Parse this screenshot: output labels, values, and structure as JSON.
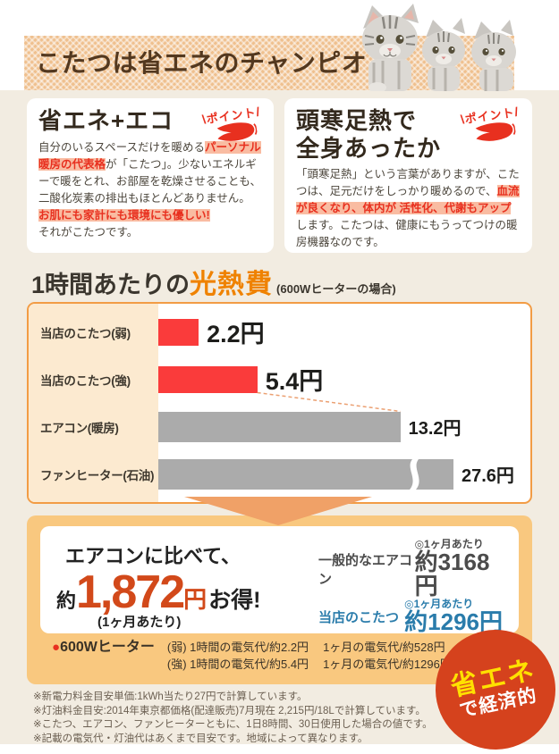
{
  "header": {
    "title": "こたつは省エネのチャンピオン!"
  },
  "point_badge": "ポイント",
  "cards": {
    "left": {
      "title": "省エネ+エコ",
      "seg1": "自分のいるスペースだけを暖める",
      "hl1": "パーソナル暖房の代表格",
      "seg2": "が「こたつ」。少ないエネルギーで暖をとれ、お部屋を乾燥させることも、二酸化炭素の排出もほとんどありません。",
      "hl2": "お肌にも家計にも環境にも優しい!",
      "seg3": "それがこたつです。"
    },
    "right": {
      "title_line1": "頭寒足熱で",
      "title_line2": "全身あったか",
      "seg1": "「頭寒足熱」という言葉がありますが、こたつは、足元だけをしっかり暖めるので、",
      "hl1": "血流が良くなり、体内が 活性化、代謝もアップ",
      "seg2": "します。こたつは、健康にもうってつけの暖房機器なのです。"
    }
  },
  "chart_section": {
    "title_main": "1時間あたりの",
    "title_accent": "光熱費",
    "title_note": "(600Wヒーターの場合)"
  },
  "chart_data": {
    "type": "bar",
    "orientation": "horizontal",
    "title": "1時間あたりの光熱費(600Wヒーターの場合)",
    "unit": "円",
    "categories": [
      "当店のこたつ(弱)",
      "当店のこたつ(強)",
      "エアコン(暖房)",
      "ファンヒーター(石油)"
    ],
    "values": [
      2.2,
      5.4,
      13.2,
      27.6
    ],
    "value_labels": [
      "2.2円",
      "5.4円",
      "13.2円",
      "27.6円"
    ],
    "bar_colors": [
      "#FA3B3B",
      "#FA3B3B",
      "#ABABAB",
      "#ABABAB"
    ],
    "highlight_color": "#FA3B3B",
    "other_color": "#ABABAB",
    "xlim": [
      0,
      28
    ],
    "grid": false,
    "broken_bar_index": 3,
    "legend": false
  },
  "savings": {
    "compare_prefix": "エアコンに比べて、",
    "approx": "約",
    "amount": "1,872",
    "yen": "円",
    "otoku": "お得!",
    "per_month": "(1ヶ月あたり)",
    "rows": [
      {
        "label": "一般的なエアコン",
        "note": "◎1ヶ月あたり",
        "value": "約3168円",
        "color": "#4c4c4c"
      },
      {
        "label": "当店のこたつ",
        "note": "◎1ヶ月あたり",
        "value": "約1296円",
        "color": "#2a7cab"
      }
    ],
    "heater": {
      "bullet": "●",
      "label": "600Wヒーター",
      "lines": [
        {
          "a": "(弱) 1時間の電気代/約2.2円",
          "b": "1ヶ月の電気代/約528円"
        },
        {
          "a": "(強) 1時間の電気代/約5.4円",
          "b": "1ヶ月の電気代/約1296円"
        }
      ]
    }
  },
  "badge": {
    "line1": "省エネ",
    "line2": "で経済的"
  },
  "footnotes": [
    "※新電力料金目安単価:1kWh当たり27円で計算しています。",
    "※灯油料金目安:2014年東京都価格(配達販売)7月現在 2,215円/18Lで計算しています。",
    "※こたつ、エアコン、ファンヒーターともに、1日8時間、30日使用した場合の値です。",
    "※記載の電気代・灯油代はあくまで目安です。地域によって異なります。"
  ],
  "colors": {
    "accent_orange": "#EF8200",
    "bar_red": "#FA3B3B",
    "bar_gray": "#ABABAB",
    "highlight_bg": "#F9BCA2",
    "highlight_text": "#E8301F",
    "panel_orange": "#F9C87F",
    "badge_red": "#D5421D",
    "badge_yellow": "#FFE100",
    "amount_red": "#D2491A",
    "kotatsu_blue": "#2A7CAB"
  }
}
